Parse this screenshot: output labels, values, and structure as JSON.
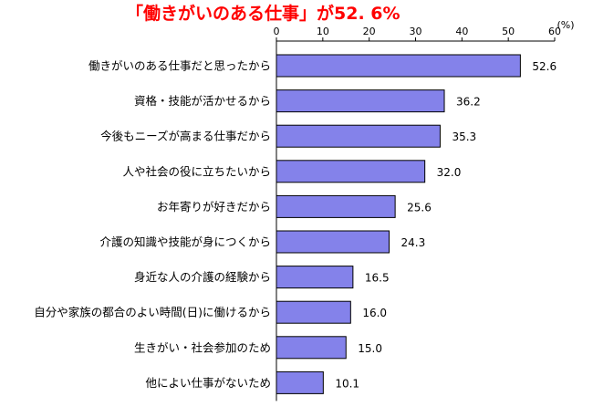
{
  "chart_data": {
    "type": "bar",
    "orientation": "horizontal",
    "title": "「働きがいのある仕事」が52. 6%",
    "unit": "(%)",
    "xlim": [
      0,
      60
    ],
    "ticks": [
      "0",
      "10",
      "20",
      "30",
      "40",
      "50",
      "60"
    ],
    "categories": [
      "働きがいのある仕事だと思ったから",
      "資格・技能が活かせるから",
      "今後もニーズが高まる仕事だから",
      "人や社会の役に立ちたいから",
      "お年寄りが好きだから",
      "介護の知識や技能が身につくから",
      "身近な人の介護の経験から",
      "自分や家族の都合のよい時間(日)に働けるから",
      "生きがい・社会参加のため",
      "他によい仕事がないため"
    ],
    "values": [
      52.6,
      36.2,
      35.3,
      32.0,
      25.6,
      24.3,
      16.5,
      16.0,
      15.0,
      10.1
    ],
    "value_labels": [
      "52.6",
      "36.2",
      "35.3",
      "32.0",
      "25.6",
      "24.3",
      "16.5",
      "16.0",
      "15.0",
      "10.1"
    ],
    "grid": false,
    "legend": "none",
    "colors": {
      "bar": "#8482ea",
      "title": "#ff0000"
    }
  }
}
